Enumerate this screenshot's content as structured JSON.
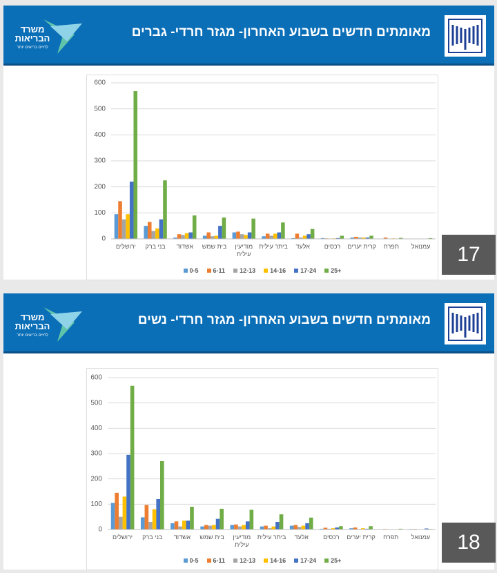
{
  "logo": {
    "name": "משרד הבריאות",
    "tagline": "לחיים בריאים יותר"
  },
  "slides": [
    {
      "number": "17"
    },
    {
      "number": "18"
    }
  ],
  "chart_data": [
    {
      "type": "bar",
      "title": "מאומתים חדשים בשבוע האחרון- מגזר חרדי- גברים",
      "categories": [
        "ירושלים",
        "בני ברק",
        "אשדוד",
        "בית שמש",
        "מודיעין עילית",
        "ביתר עילית",
        "אלעד",
        "רכסים",
        "קרית יערים",
        "תפרח",
        "עמנואל"
      ],
      "series": [
        {
          "name": "0-5",
          "color": "#5b9bd5",
          "values": [
            95,
            50,
            5,
            12,
            25,
            10,
            3,
            3,
            5,
            0,
            0
          ]
        },
        {
          "name": "6-11",
          "color": "#ed7d31",
          "values": [
            145,
            65,
            18,
            25,
            28,
            20,
            20,
            2,
            8,
            5,
            0
          ]
        },
        {
          "name": "12-13",
          "color": "#a5a5a5",
          "values": [
            75,
            30,
            15,
            10,
            18,
            12,
            5,
            1,
            5,
            0,
            0
          ]
        },
        {
          "name": "14-16",
          "color": "#ffc000",
          "values": [
            95,
            40,
            22,
            12,
            15,
            20,
            12,
            2,
            5,
            2,
            0
          ]
        },
        {
          "name": "17-24",
          "color": "#4472c4",
          "values": [
            220,
            75,
            25,
            50,
            25,
            25,
            18,
            3,
            5,
            0,
            0
          ]
        },
        {
          "name": "25+",
          "color": "#70ad47",
          "values": [
            568,
            225,
            90,
            82,
            78,
            63,
            38,
            12,
            12,
            4,
            3
          ]
        }
      ],
      "ylim": [
        0,
        600
      ],
      "yticks": [
        0,
        100,
        200,
        300,
        400,
        500,
        600
      ],
      "grid": true,
      "legend": "bottom"
    },
    {
      "type": "bar",
      "title": "מאומתים חדשים בשבוע האחרון- מגזר חרדי- נשים",
      "categories": [
        "ירושלים",
        "בני ברק",
        "אשדוד",
        "בית שמש",
        "מודיעין עילית",
        "ביתר עילית",
        "אלעד",
        "רכסים",
        "קרית יערים",
        "תפרח",
        "עמנואל"
      ],
      "series": [
        {
          "name": "0-5",
          "color": "#5b9bd5",
          "values": [
            105,
            48,
            25,
            12,
            18,
            12,
            15,
            3,
            5,
            0,
            2
          ]
        },
        {
          "name": "6-11",
          "color": "#ed7d31",
          "values": [
            145,
            97,
            32,
            18,
            20,
            15,
            18,
            7,
            8,
            2,
            2
          ]
        },
        {
          "name": "12-13",
          "color": "#a5a5a5",
          "values": [
            50,
            30,
            12,
            15,
            12,
            5,
            10,
            3,
            2,
            0,
            0
          ]
        },
        {
          "name": "14-16",
          "color": "#ffc000",
          "values": [
            130,
            80,
            35,
            18,
            18,
            12,
            15,
            5,
            5,
            1,
            1
          ]
        },
        {
          "name": "17-24",
          "color": "#4472c4",
          "values": [
            295,
            120,
            35,
            42,
            32,
            30,
            25,
            8,
            3,
            0,
            4
          ]
        },
        {
          "name": "25+",
          "color": "#70ad47",
          "values": [
            568,
            270,
            90,
            82,
            78,
            60,
            47,
            13,
            13,
            3,
            2
          ]
        }
      ],
      "ylim": [
        0,
        600
      ],
      "yticks": [
        0,
        100,
        200,
        300,
        400,
        500,
        600
      ],
      "grid": true,
      "legend": "bottom"
    }
  ]
}
